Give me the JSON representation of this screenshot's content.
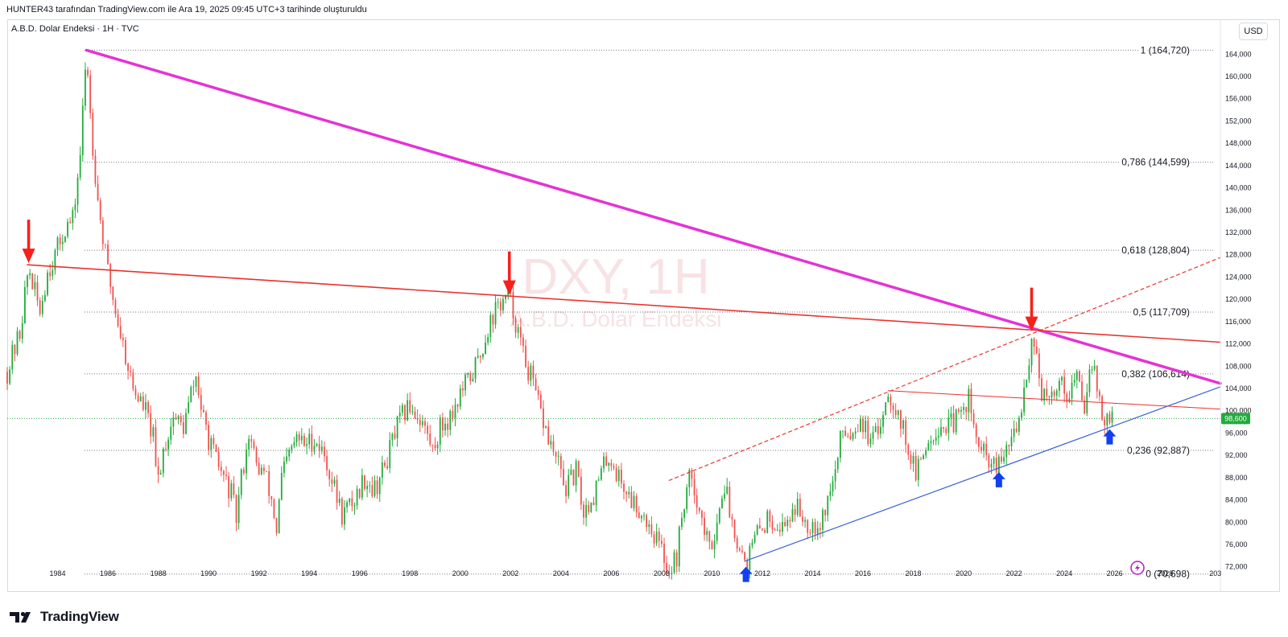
{
  "header": {
    "attribution": "HUNTER43 tarafından TradingView.com ile Ara 19, 2025 09:45 UTC+3 tarihinde oluşturuldu",
    "symbol": "A.B.D. Dolar Endeksi · 1H · TVC",
    "currency_button": "USD"
  },
  "brand": {
    "name": "TradingView",
    "logo_icon": "tradingview-logo-icon"
  },
  "chart_data": {
    "type": "candlestick",
    "watermark": {
      "title": "DXY, 1H",
      "subtitle": "A.B.D. Dolar Endeksi"
    },
    "y_axis": {
      "range": [
        69.5,
        166.5
      ],
      "ticks": [
        "72,000",
        "76,000",
        "80,000",
        "84,000",
        "88,000",
        "92,000",
        "96,000",
        "100,000",
        "104,000",
        "108,000",
        "112,000",
        "116,000",
        "120,000",
        "124,000",
        "128,000",
        "132,000",
        "136,000",
        "140,000",
        "144,000",
        "148,000",
        "152,000",
        "156,000",
        "160,000",
        "164,000"
      ]
    },
    "x_axis": {
      "range": [
        1982.0,
        2030.2
      ],
      "ticks": [
        "1984",
        "1986",
        "1988",
        "1990",
        "1992",
        "1994",
        "1996",
        "1998",
        "2000",
        "2002",
        "2004",
        "2006",
        "2008",
        "2010",
        "2012",
        "2014",
        "2016",
        "2018",
        "2020",
        "2022",
        "2024",
        "2026",
        "2028",
        "203"
      ]
    },
    "last_price": {
      "value": 98.6,
      "label": "98,600",
      "color": "#22ab3c"
    },
    "fibonacci_levels": [
      {
        "ratio": 1,
        "price": 164.72,
        "label": "1 (164,720)"
      },
      {
        "ratio": 0.786,
        "price": 144.599,
        "label": "0,786 (144,599)"
      },
      {
        "ratio": 0.618,
        "price": 128.804,
        "label": "0,618 (128,804)"
      },
      {
        "ratio": 0.5,
        "price": 117.709,
        "label": "0,5 (117,709)"
      },
      {
        "ratio": 0.382,
        "price": 106.614,
        "label": "0,382 (106,614)"
      },
      {
        "ratio": 0.236,
        "price": 92.887,
        "label": "0,236 (92,887)"
      },
      {
        "ratio": 0,
        "price": 70.698,
        "label": "0 (70,698)"
      }
    ],
    "trend_lines": [
      {
        "name": "major-downtrend",
        "color": "#e532d4",
        "width": 3.5,
        "from": [
          1985.15,
          164.7
        ],
        "to": [
          2030.2,
          104.9
        ],
        "dashed": false
      },
      {
        "name": "long-term-resistance",
        "color": "#e8322e",
        "width": 1.6,
        "from": [
          1982.8,
          126.2
        ],
        "to": [
          2030.2,
          112.3
        ],
        "dashed": false
      },
      {
        "name": "channel-top",
        "color": "#e8322e",
        "width": 1.2,
        "from": [
          2008.3,
          87.5
        ],
        "to": [
          2030.2,
          127.5
        ],
        "dashed": true
      },
      {
        "name": "minor-resistance",
        "color": "#e8322e",
        "width": 1.0,
        "from": [
          2017.0,
          103.6
        ],
        "to": [
          2030.2,
          100.3
        ],
        "dashed": false
      },
      {
        "name": "rising-support",
        "color": "#3a5fd9",
        "width": 1.2,
        "from": [
          2011.3,
          73.0
        ],
        "to": [
          2030.2,
          104.3
        ],
        "dashed": false
      }
    ],
    "arrows": [
      {
        "name": "sell-arrow-1985",
        "direction": "down",
        "color": "#f5221b",
        "x": 1982.85,
        "y": 126.5
      },
      {
        "name": "sell-arrow-2002",
        "direction": "down",
        "color": "#f5221b",
        "x": 2001.95,
        "y": 120.8
      },
      {
        "name": "sell-arrow-2022",
        "direction": "down",
        "color": "#f5221b",
        "x": 2022.7,
        "y": 114.3
      },
      {
        "name": "buy-arrow-2011",
        "direction": "up",
        "color": "#1240f0",
        "x": 2011.35,
        "y": 72.0
      },
      {
        "name": "buy-arrow-2021",
        "direction": "up",
        "color": "#1240f0",
        "x": 2021.4,
        "y": 89.0
      },
      {
        "name": "buy-arrow-2025",
        "direction": "up",
        "color": "#1240f0",
        "x": 2025.8,
        "y": 96.7
      }
    ],
    "price_path": [
      [
        1982.0,
        107
      ],
      [
        1982.5,
        114
      ],
      [
        1982.85,
        125.8
      ],
      [
        1983.1,
        121
      ],
      [
        1983.3,
        118
      ],
      [
        1983.6,
        125
      ],
      [
        1984.0,
        129
      ],
      [
        1984.3,
        133
      ],
      [
        1984.6,
        134
      ],
      [
        1984.9,
        146
      ],
      [
        1985.15,
        164.7
      ],
      [
        1985.35,
        150
      ],
      [
        1985.6,
        138
      ],
      [
        1985.8,
        131
      ],
      [
        1986.0,
        125
      ],
      [
        1986.3,
        118
      ],
      [
        1986.6,
        112
      ],
      [
        1987.0,
        104
      ],
      [
        1987.5,
        100
      ],
      [
        1987.8,
        95
      ],
      [
        1987.95,
        86.5
      ],
      [
        1988.2,
        93
      ],
      [
        1988.6,
        99
      ],
      [
        1989.0,
        97
      ],
      [
        1989.3,
        103
      ],
      [
        1989.5,
        106
      ],
      [
        1989.8,
        98
      ],
      [
        1990.2,
        92
      ],
      [
        1990.6,
        88
      ],
      [
        1990.9,
        85
      ],
      [
        1991.1,
        80.7
      ],
      [
        1991.3,
        88
      ],
      [
        1991.6,
        96
      ],
      [
        1991.9,
        90
      ],
      [
        1992.2,
        89
      ],
      [
        1992.5,
        84
      ],
      [
        1992.7,
        78.5
      ],
      [
        1992.9,
        88
      ],
      [
        1993.2,
        92
      ],
      [
        1993.5,
        95
      ],
      [
        1993.8,
        94
      ],
      [
        1994.2,
        95
      ],
      [
        1994.6,
        92
      ],
      [
        1995.0,
        86
      ],
      [
        1995.3,
        81.4
      ],
      [
        1995.8,
        84
      ],
      [
        1996.2,
        88
      ],
      [
        1996.6,
        86
      ],
      [
        1997.0,
        90
      ],
      [
        1997.4,
        96
      ],
      [
        1997.7,
        99
      ],
      [
        1998.0,
        101
      ],
      [
        1998.5,
        98
      ],
      [
        1998.9,
        93
      ],
      [
        1999.2,
        97
      ],
      [
        1999.6,
        99
      ],
      [
        2000.0,
        103
      ],
      [
        2000.4,
        106
      ],
      [
        2000.8,
        110
      ],
      [
        2001.1,
        115
      ],
      [
        2001.5,
        119
      ],
      [
        2001.95,
        120.5
      ],
      [
        2002.2,
        116
      ],
      [
        2002.5,
        110
      ],
      [
        2002.8,
        106
      ],
      [
        2003.1,
        101
      ],
      [
        2003.5,
        95
      ],
      [
        2003.9,
        90
      ],
      [
        2004.2,
        86
      ],
      [
        2004.6,
        89
      ],
      [
        2004.9,
        81.8
      ],
      [
        2005.3,
        85
      ],
      [
        2005.7,
        90
      ],
      [
        2005.9,
        92
      ],
      [
        2006.3,
        88
      ],
      [
        2006.8,
        84
      ],
      [
        2007.2,
        82
      ],
      [
        2007.6,
        79
      ],
      [
        2007.9,
        76
      ],
      [
        2008.2,
        72.5
      ],
      [
        2008.3,
        71.3
      ],
      [
        2008.6,
        74
      ],
      [
        2008.9,
        84
      ],
      [
        2009.2,
        89
      ],
      [
        2009.5,
        82
      ],
      [
        2009.9,
        75
      ],
      [
        2010.3,
        82
      ],
      [
        2010.45,
        88
      ],
      [
        2010.8,
        80
      ],
      [
        2011.1,
        76
      ],
      [
        2011.35,
        72.7
      ],
      [
        2011.8,
        78
      ],
      [
        2012.3,
        81
      ],
      [
        2012.8,
        79
      ],
      [
        2013.3,
        83
      ],
      [
        2013.8,
        80
      ],
      [
        2014.3,
        80
      ],
      [
        2014.6,
        84
      ],
      [
        2014.9,
        89
      ],
      [
        2015.2,
        97
      ],
      [
        2015.5,
        96
      ],
      [
        2015.9,
        99
      ],
      [
        2016.3,
        94
      ],
      [
        2016.6,
        96
      ],
      [
        2016.95,
        103.6
      ],
      [
        2017.3,
        101
      ],
      [
        2017.7,
        95
      ],
      [
        2018.0,
        90
      ],
      [
        2018.15,
        88.5
      ],
      [
        2018.5,
        94
      ],
      [
        2018.9,
        97
      ],
      [
        2019.5,
        97.5
      ],
      [
        2019.9,
        99
      ],
      [
        2020.2,
        102.9
      ],
      [
        2020.4,
        96
      ],
      [
        2020.8,
        92
      ],
      [
        2021.1,
        90
      ],
      [
        2021.4,
        89.7
      ],
      [
        2021.8,
        94
      ],
      [
        2022.1,
        96
      ],
      [
        2022.4,
        104
      ],
      [
        2022.75,
        114.1
      ],
      [
        2022.9,
        110
      ],
      [
        2023.1,
        103
      ],
      [
        2023.4,
        101
      ],
      [
        2023.8,
        106
      ],
      [
        2024.1,
        103
      ],
      [
        2024.5,
        106
      ],
      [
        2024.8,
        101
      ],
      [
        2025.0,
        108.5
      ],
      [
        2025.1,
        109.5
      ],
      [
        2025.3,
        104
      ],
      [
        2025.5,
        99
      ],
      [
        2025.7,
        97.5
      ],
      [
        2025.9,
        98.6
      ]
    ]
  },
  "ui": {
    "accent_up": "#22ab3c",
    "accent_down": "#ef5350",
    "grid_line": "#787b86"
  },
  "icons": {
    "replay": "lightning-replay-icon"
  }
}
